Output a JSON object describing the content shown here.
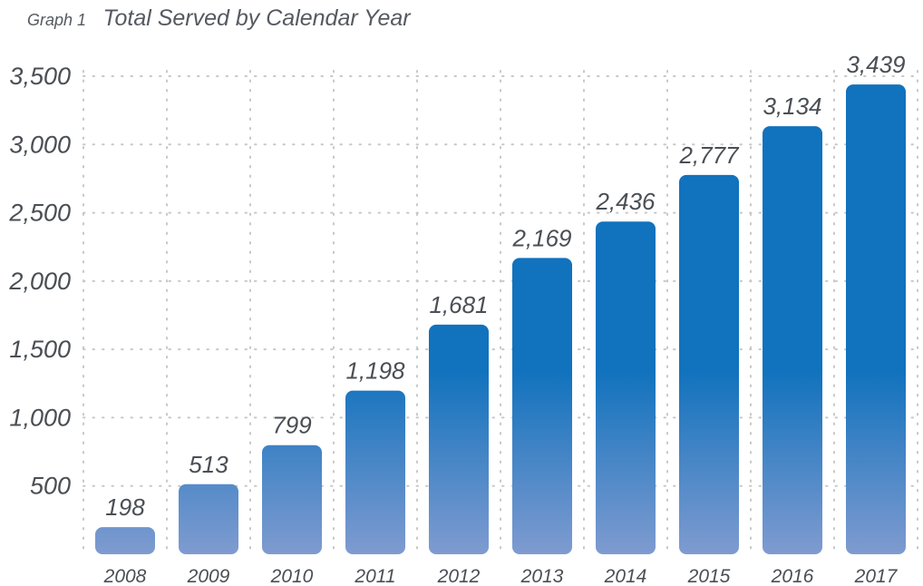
{
  "chart_data": {
    "type": "bar",
    "graph_label": "Graph 1",
    "title": "Total Served by Calendar Year",
    "xlabel": "",
    "ylabel": "",
    "categories": [
      "2008",
      "2009",
      "2010",
      "2011",
      "2012",
      "2013",
      "2014",
      "2015",
      "2016",
      "2017"
    ],
    "values": [
      198,
      513,
      799,
      1198,
      1681,
      2169,
      2436,
      2777,
      3134,
      3439
    ],
    "value_labels": [
      "198",
      "513",
      "799",
      "1,198",
      "1,681",
      "2,169",
      "2,436",
      "2,777",
      "3,134",
      "3,439"
    ],
    "yticks": [
      500,
      1000,
      1500,
      2000,
      2500,
      3000,
      3500
    ],
    "ytick_labels": [
      "500",
      "1,000",
      "1,500",
      "2,000",
      "2,500",
      "3,000",
      "3,500"
    ],
    "ylim": [
      0,
      3500
    ],
    "grid": "dotted",
    "colors": {
      "bar_top": "#1172bd",
      "bar_bottom": "#7f9bd0",
      "grid": "#c8c8c8",
      "text": "#4a4f55"
    }
  }
}
